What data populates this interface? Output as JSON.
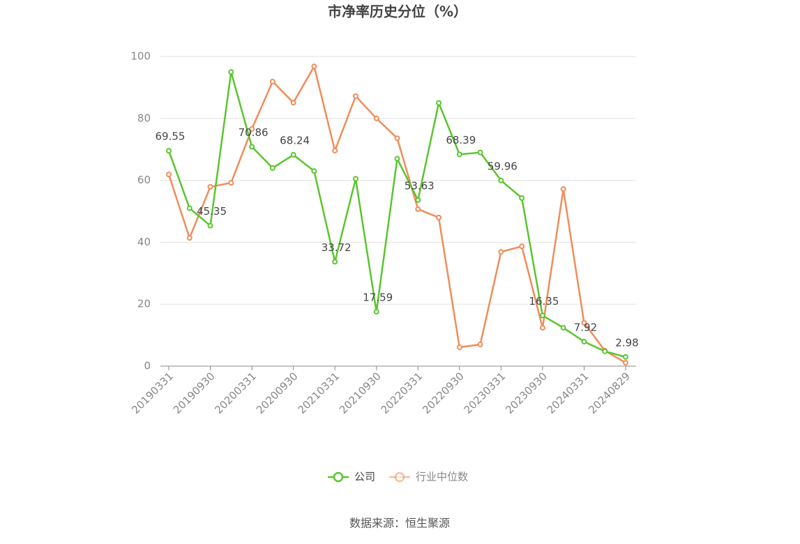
{
  "chart_data": {
    "type": "line",
    "title": "市净率历史分位（%）",
    "categories": [
      "20190331",
      null,
      "20190930",
      null,
      "20200331",
      null,
      "20200930",
      null,
      "20210331",
      null,
      "20210930",
      null,
      "20220331",
      null,
      "20220930",
      null,
      "20230331",
      null,
      "20230930",
      null,
      "20240331",
      null,
      "20240829"
    ],
    "series": [
      {
        "name": "公司",
        "color": "#5ac52d",
        "values": [
          69.55,
          51,
          45.35,
          95,
          70.86,
          64,
          68.24,
          63,
          33.72,
          60.5,
          17.59,
          67,
          53.63,
          85,
          68.39,
          69,
          59.96,
          54.3,
          16.35,
          12.4,
          7.92,
          4.8,
          2.98
        ]
      },
      {
        "name": "行业中位数",
        "color": "#f08c5a",
        "values": [
          61.9,
          41.4,
          57.9,
          59.2,
          76.6,
          91.9,
          85.1,
          96.8,
          69.6,
          87.2,
          80.0,
          73.6,
          50.7,
          48.0,
          6.1,
          7.0,
          36.9,
          38.7,
          12.4,
          57.2,
          14.0,
          5.0,
          1.1
        ]
      }
    ],
    "ylim": [
      0,
      100
    ],
    "yticks": [
      0,
      20,
      40,
      60,
      80,
      100
    ],
    "grid": true,
    "source": "数据来源：恒生聚源"
  }
}
